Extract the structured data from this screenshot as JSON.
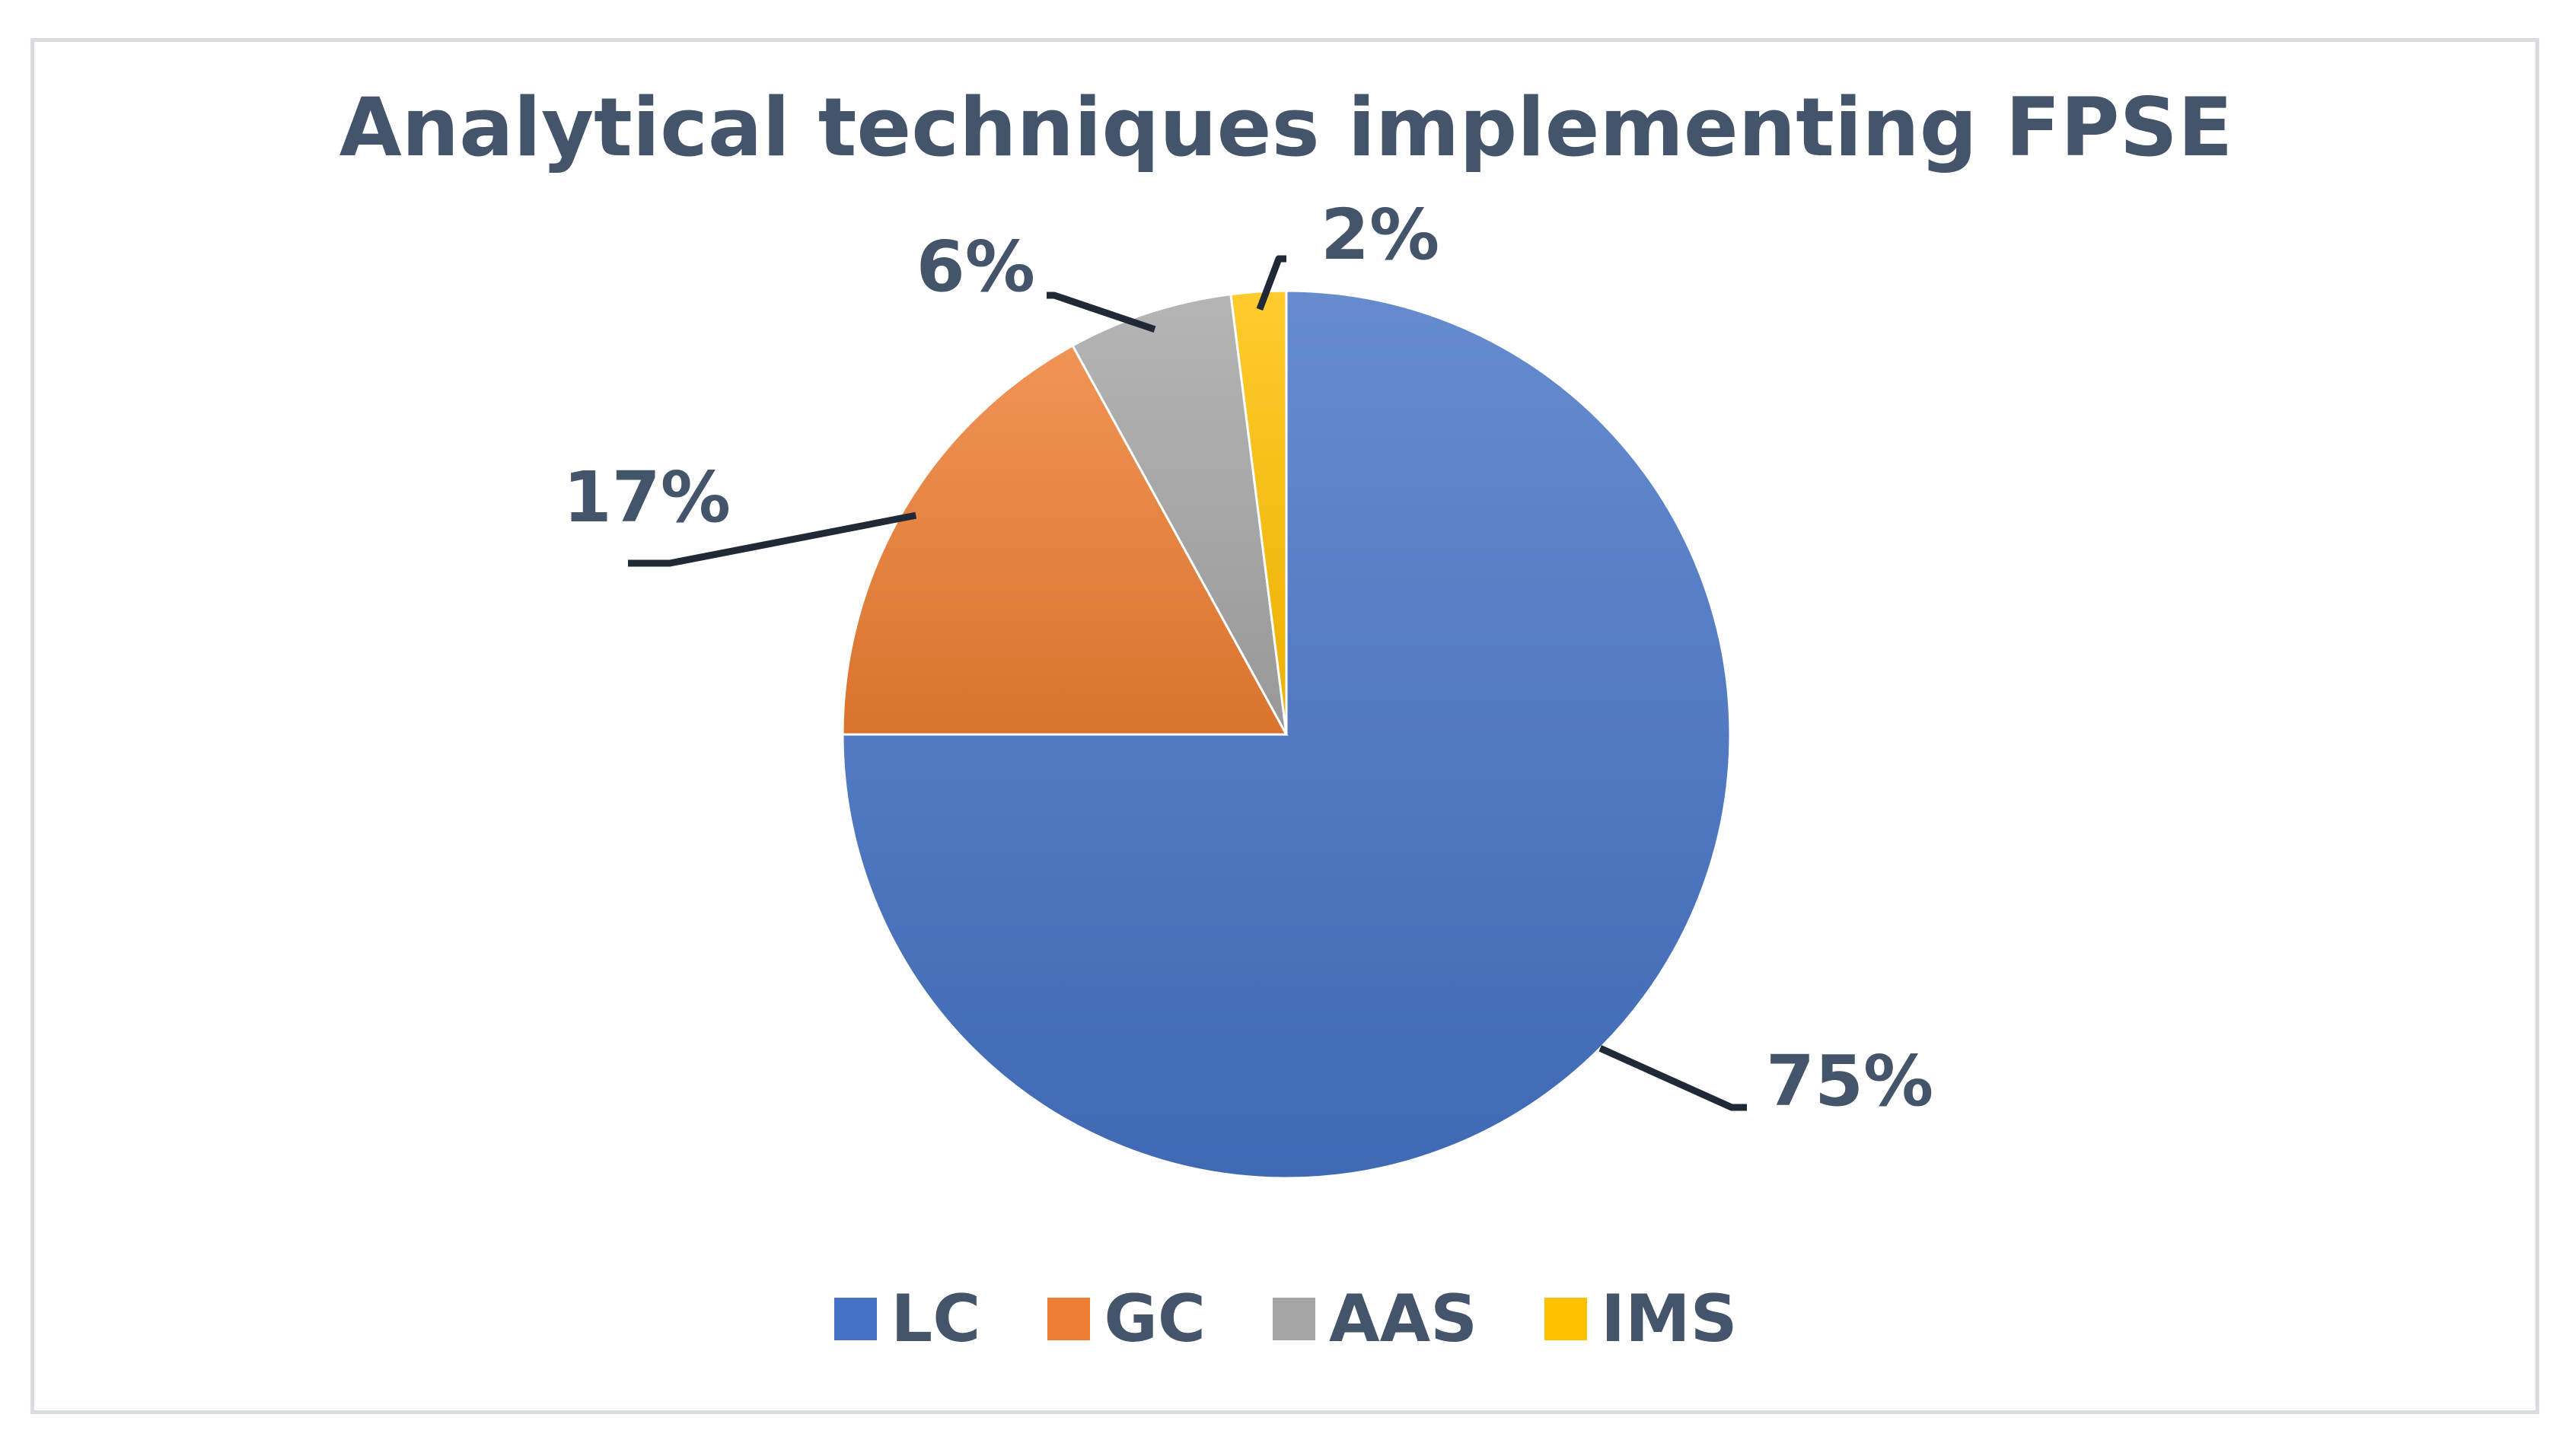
{
  "chart_data": {
    "type": "pie",
    "title": "Analytical techniques implementing FPSE",
    "categories": [
      "LC",
      "GC",
      "AAS",
      "IMS"
    ],
    "values": [
      75,
      17,
      6,
      2
    ],
    "data_labels": [
      "75%",
      "17%",
      "6%",
      "2%"
    ],
    "colors": [
      "#4472c4",
      "#ed7d31",
      "#a5a5a5",
      "#ffc000"
    ],
    "legend_position": "bottom",
    "start_angle": "12 o'clock, clockwise"
  }
}
